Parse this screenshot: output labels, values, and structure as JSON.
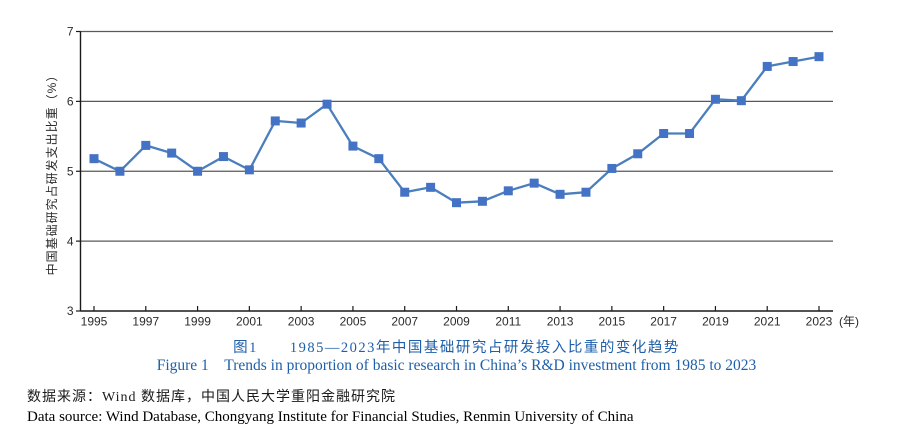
{
  "chart_data": {
    "type": "line",
    "ylabel": "中国基础研究占研发支出比重（%）",
    "x_unit_label": "(年)",
    "ylim": [
      3,
      7
    ],
    "yticks": [
      3,
      4,
      5,
      6,
      7
    ],
    "xtick_years": [
      1995,
      1997,
      1999,
      2001,
      2003,
      2005,
      2007,
      2009,
      2011,
      2013,
      2015,
      2017,
      2019,
      2021,
      2023
    ],
    "grid": "horizontal gridlines at each integer, no right border, no legend",
    "legend": "none",
    "x": [
      1995,
      1996,
      1997,
      1998,
      1999,
      2000,
      2001,
      2002,
      2003,
      2004,
      2005,
      2006,
      2007,
      2008,
      2009,
      2010,
      2011,
      2012,
      2013,
      2014,
      2015,
      2016,
      2017,
      2018,
      2019,
      2020,
      2021,
      2022,
      2023
    ],
    "series": [
      {
        "name": "中国基础研究占研发支出比重（%）",
        "values": [
          5.18,
          5.0,
          5.37,
          5.26,
          5.0,
          5.21,
          5.02,
          5.72,
          5.69,
          5.96,
          5.36,
          5.18,
          4.7,
          4.77,
          4.55,
          4.57,
          4.72,
          4.83,
          4.67,
          4.7,
          5.04,
          5.25,
          5.54,
          5.54,
          6.03,
          6.01,
          6.5,
          6.57,
          6.64
        ]
      }
    ],
    "marker": "square"
  },
  "colors": {
    "line_color": "#4A7EBC",
    "marker_color": "#4472C4",
    "grid_color": "#58595B",
    "axis_color": "#1A1A1A",
    "tick_text_color": "#2B2B2B",
    "caption_blue": "#1E5FAA"
  },
  "captions": {
    "figure_zh": "图1　　1985—2023年中国基础研究占研发投入比重的变化趋势",
    "figure_en": "Figure 1 Trends in proportion of basic research in China’s R&D investment from 1985 to 2023",
    "source_zh": "数据来源：Wind 数据库，中国人民大学重阳金融研究院",
    "source_en": "Data source: Wind Database, Chongyang Institute for Financial Studies, Renmin University of China"
  }
}
